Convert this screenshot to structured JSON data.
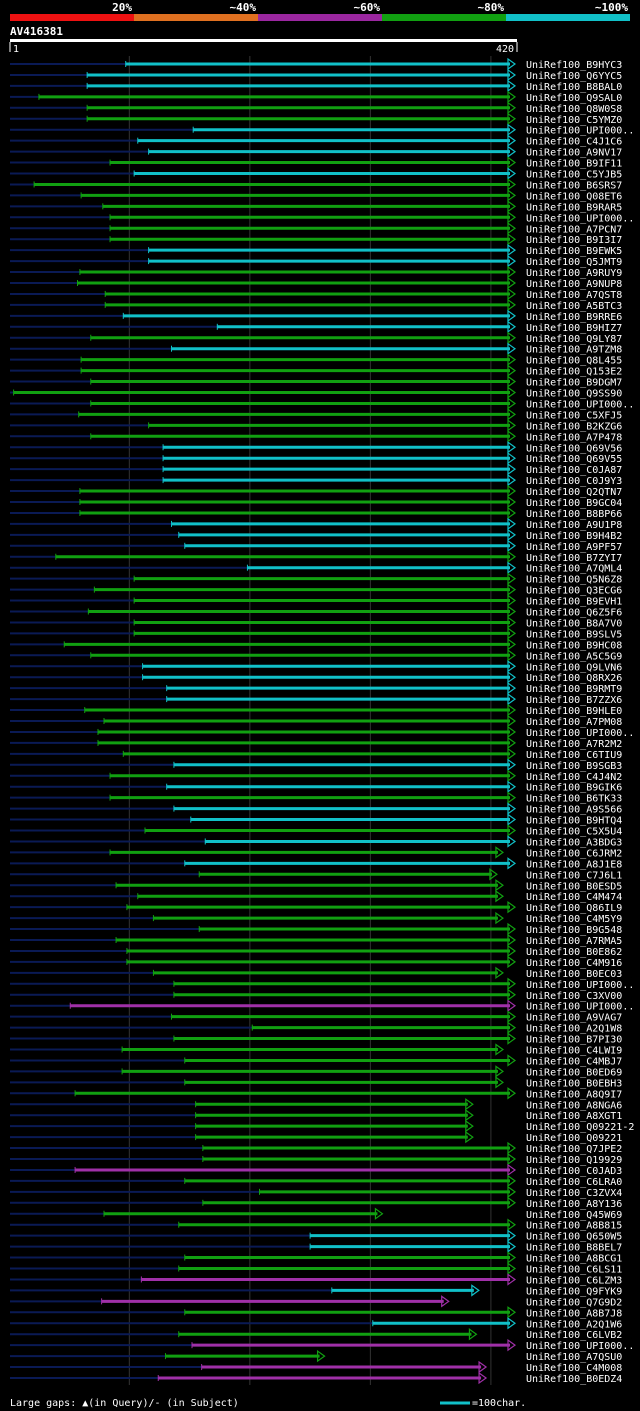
{
  "chart_data": {
    "type": "alignment-overview",
    "query": "AV416381",
    "query_start": 1,
    "query_end": 420,
    "identity_legend": [
      {
        "label": "20%",
        "color": "#ee1111"
      },
      {
        "label": "~40%",
        "color": "#e07020"
      },
      {
        "label": "~60%",
        "color": "#9b27a0"
      },
      {
        "label": "~80%",
        "color": "#11a011"
      },
      {
        "label": "~100%",
        "color": "#11c0c8"
      }
    ],
    "footer_left": "Large gaps: ▲(in Query)/- (in Subject)",
    "footer_right": "=100char.",
    "hits": [
      {
        "id": "UniRef100_B9HYC3",
        "start": 97,
        "end": 420,
        "tail_start": 1,
        "color": "cyan"
      },
      {
        "id": "UniRef100_Q6YYC5",
        "start": 65,
        "end": 420,
        "tail_start": 1,
        "color": "cyan"
      },
      {
        "id": "UniRef100_B8BAL0",
        "start": 65,
        "end": 420,
        "tail_start": 1,
        "color": "cyan"
      },
      {
        "id": "UniRef100_Q9SAL0",
        "start": 25,
        "end": 420,
        "tail_start": 1,
        "color": "green"
      },
      {
        "id": "UniRef100_Q8W0S8",
        "start": 65,
        "end": 420,
        "tail_start": 1,
        "color": "green"
      },
      {
        "id": "UniRef100_C5YMZ0",
        "start": 65,
        "end": 420,
        "tail_start": 1,
        "color": "green"
      },
      {
        "id": "UniRef100_UPI000..",
        "start": 153,
        "end": 420,
        "tail_start": 1,
        "color": "cyan"
      },
      {
        "id": "UniRef100_C4J1C6",
        "start": 107,
        "end": 420,
        "tail_start": 1,
        "color": "cyan"
      },
      {
        "id": "UniRef100_A9NV17",
        "start": 116,
        "end": 420,
        "tail_start": 1,
        "color": "cyan"
      },
      {
        "id": "UniRef100_B9IF11",
        "start": 84,
        "end": 420,
        "tail_start": 1,
        "color": "green"
      },
      {
        "id": "UniRef100_C5YJB5",
        "start": 104,
        "end": 420,
        "tail_start": 1,
        "color": "cyan"
      },
      {
        "id": "UniRef100_B6SRS7",
        "start": 21,
        "end": 420,
        "tail_start": 1,
        "color": "green"
      },
      {
        "id": "UniRef100_Q08ET6",
        "start": 60,
        "end": 420,
        "tail_start": 1,
        "color": "green"
      },
      {
        "id": "UniRef100_B9RAR5",
        "start": 78,
        "end": 420,
        "tail_start": 1,
        "color": "green"
      },
      {
        "id": "UniRef100_UPI000..",
        "start": 84,
        "end": 420,
        "tail_start": 1,
        "color": "green"
      },
      {
        "id": "UniRef100_A7PCN7",
        "start": 84,
        "end": 420,
        "tail_start": 1,
        "color": "green"
      },
      {
        "id": "UniRef100_B9I3I7",
        "start": 84,
        "end": 420,
        "tail_start": 1,
        "color": "green"
      },
      {
        "id": "UniRef100_B9EWK5",
        "start": 116,
        "end": 420,
        "tail_start": 1,
        "color": "cyan"
      },
      {
        "id": "UniRef100_Q5JMT9",
        "start": 116,
        "end": 420,
        "tail_start": 1,
        "color": "cyan"
      },
      {
        "id": "UniRef100_A9RUY9",
        "start": 59,
        "end": 420,
        "tail_start": 1,
        "color": "green"
      },
      {
        "id": "UniRef100_A9NUP8",
        "start": 57,
        "end": 420,
        "tail_start": 1,
        "color": "green"
      },
      {
        "id": "UniRef100_A7QST8",
        "start": 80,
        "end": 420,
        "tail_start": 1,
        "color": "green"
      },
      {
        "id": "UniRef100_A5BTC3",
        "start": 80,
        "end": 420,
        "tail_start": 1,
        "color": "green"
      },
      {
        "id": "UniRef100_B9RRE6",
        "start": 95,
        "end": 420,
        "tail_start": 1,
        "color": "cyan"
      },
      {
        "id": "UniRef100_B9HIZ7",
        "start": 173,
        "end": 420,
        "tail_start": 1,
        "color": "cyan"
      },
      {
        "id": "UniRef100_Q9LY87",
        "start": 68,
        "end": 420,
        "tail_start": 1,
        "color": "green"
      },
      {
        "id": "UniRef100_A9TZM8",
        "start": 135,
        "end": 420,
        "tail_start": 1,
        "color": "cyan"
      },
      {
        "id": "UniRef100_Q8L455",
        "start": 60,
        "end": 420,
        "tail_start": 1,
        "color": "green"
      },
      {
        "id": "UniRef100_Q153E2",
        "start": 60,
        "end": 420,
        "tail_start": 1,
        "color": "green"
      },
      {
        "id": "UniRef100_B9DGM7",
        "start": 68,
        "end": 420,
        "tail_start": 1,
        "color": "green"
      },
      {
        "id": "UniRef100_Q9SS90",
        "start": 4,
        "end": 420,
        "tail_start": 1,
        "color": "green"
      },
      {
        "id": "UniRef100_UPI000..",
        "start": 68,
        "end": 420,
        "tail_start": 1,
        "color": "green"
      },
      {
        "id": "UniRef100_C5XFJ5",
        "start": 58,
        "end": 420,
        "tail_start": 1,
        "color": "green"
      },
      {
        "id": "UniRef100_B2KZG6",
        "start": 116,
        "end": 420,
        "tail_start": 1,
        "color": "green"
      },
      {
        "id": "UniRef100_A7P478",
        "start": 68,
        "end": 420,
        "tail_start": 1,
        "color": "green"
      },
      {
        "id": "UniRef100_Q69V56",
        "start": 128,
        "end": 420,
        "tail_start": 1,
        "color": "cyan"
      },
      {
        "id": "UniRef100_Q69V55",
        "start": 128,
        "end": 420,
        "tail_start": 1,
        "color": "cyan"
      },
      {
        "id": "UniRef100_C0JA87",
        "start": 128,
        "end": 420,
        "tail_start": 1,
        "color": "cyan"
      },
      {
        "id": "UniRef100_C0J9Y3",
        "start": 128,
        "end": 420,
        "tail_start": 1,
        "color": "cyan"
      },
      {
        "id": "UniRef100_Q2QTN7",
        "start": 59,
        "end": 420,
        "tail_start": 1,
        "color": "green"
      },
      {
        "id": "UniRef100_B9GC04",
        "start": 59,
        "end": 420,
        "tail_start": 1,
        "color": "green"
      },
      {
        "id": "UniRef100_B8BP66",
        "start": 59,
        "end": 420,
        "tail_start": 1,
        "color": "green"
      },
      {
        "id": "UniRef100_A9U1P8",
        "start": 135,
        "end": 420,
        "tail_start": 1,
        "color": "cyan"
      },
      {
        "id": "UniRef100_B9H4B2",
        "start": 141,
        "end": 420,
        "tail_start": 1,
        "color": "cyan"
      },
      {
        "id": "UniRef100_A9PF57",
        "start": 146,
        "end": 420,
        "tail_start": 1,
        "color": "cyan"
      },
      {
        "id": "UniRef100_B7ZYI7",
        "start": 39,
        "end": 420,
        "tail_start": 1,
        "color": "green"
      },
      {
        "id": "UniRef100_A7QML4",
        "start": 198,
        "end": 420,
        "tail_start": 1,
        "color": "cyan"
      },
      {
        "id": "UniRef100_Q5N6Z8",
        "start": 104,
        "end": 420,
        "tail_start": 1,
        "color": "green"
      },
      {
        "id": "UniRef100_Q3ECG6",
        "start": 71,
        "end": 420,
        "tail_start": 1,
        "color": "green"
      },
      {
        "id": "UniRef100_B9EVH1",
        "start": 104,
        "end": 420,
        "tail_start": 1,
        "color": "green"
      },
      {
        "id": "UniRef100_Q6Z5F6",
        "start": 66,
        "end": 420,
        "tail_start": 1,
        "color": "green"
      },
      {
        "id": "UniRef100_B8A7V0",
        "start": 104,
        "end": 420,
        "tail_start": 1,
        "color": "green"
      },
      {
        "id": "UniRef100_B9SLV5",
        "start": 104,
        "end": 420,
        "tail_start": 1,
        "color": "green"
      },
      {
        "id": "UniRef100_B9HC08",
        "start": 46,
        "end": 420,
        "tail_start": 1,
        "color": "green"
      },
      {
        "id": "UniRef100_A5C5G9",
        "start": 68,
        "end": 420,
        "tail_start": 1,
        "color": "green"
      },
      {
        "id": "UniRef100_Q9LVN6",
        "start": 111,
        "end": 420,
        "tail_start": 1,
        "color": "cyan"
      },
      {
        "id": "UniRef100_Q8RX26",
        "start": 111,
        "end": 420,
        "tail_start": 1,
        "color": "cyan"
      },
      {
        "id": "UniRef100_B9RMT9",
        "start": 131,
        "end": 420,
        "tail_start": 1,
        "color": "cyan"
      },
      {
        "id": "UniRef100_B7ZZX6",
        "start": 131,
        "end": 420,
        "tail_start": 1,
        "color": "cyan"
      },
      {
        "id": "UniRef100_B9HLE0",
        "start": 63,
        "end": 420,
        "tail_start": 1,
        "color": "green"
      },
      {
        "id": "UniRef100_A7PM08",
        "start": 79,
        "end": 420,
        "tail_start": 1,
        "color": "green"
      },
      {
        "id": "UniRef100_UPI000..",
        "start": 74,
        "end": 420,
        "tail_start": 1,
        "color": "green"
      },
      {
        "id": "UniRef100_A7R2M2",
        "start": 74,
        "end": 420,
        "tail_start": 1,
        "color": "green"
      },
      {
        "id": "UniRef100_C6TIU9",
        "start": 95,
        "end": 420,
        "tail_start": 1,
        "color": "green"
      },
      {
        "id": "UniRef100_B9SGB3",
        "start": 137,
        "end": 420,
        "tail_start": 1,
        "color": "cyan"
      },
      {
        "id": "UniRef100_C4J4N2",
        "start": 84,
        "end": 420,
        "tail_start": 1,
        "color": "green"
      },
      {
        "id": "UniRef100_B9GIK6",
        "start": 131,
        "end": 420,
        "tail_start": 1,
        "color": "cyan"
      },
      {
        "id": "UniRef100_B6TK33",
        "start": 84,
        "end": 420,
        "tail_start": 1,
        "color": "green"
      },
      {
        "id": "UniRef100_A9S566",
        "start": 137,
        "end": 420,
        "tail_start": 1,
        "color": "cyan"
      },
      {
        "id": "UniRef100_B9HTQ4",
        "start": 151,
        "end": 420,
        "tail_start": 1,
        "color": "cyan"
      },
      {
        "id": "UniRef100_C5X5U4",
        "start": 113,
        "end": 420,
        "tail_start": 1,
        "color": "green"
      },
      {
        "id": "UniRef100_A3BDG3",
        "start": 163,
        "end": 420,
        "tail_start": 1,
        "color": "cyan"
      },
      {
        "id": "UniRef100_C6JRM2",
        "start": 84,
        "end": 410,
        "tail_start": 1,
        "color": "green"
      },
      {
        "id": "UniRef100_A8J1E8",
        "start": 146,
        "end": 420,
        "tail_start": 1,
        "color": "cyan"
      },
      {
        "id": "UniRef100_C7J6L1",
        "start": 158,
        "end": 405,
        "tail_start": 1,
        "color": "green"
      },
      {
        "id": "UniRef100_B0ESD5",
        "start": 89,
        "end": 410,
        "tail_start": 1,
        "color": "green"
      },
      {
        "id": "UniRef100_C4M474",
        "start": 107,
        "end": 410,
        "tail_start": 1,
        "color": "green"
      },
      {
        "id": "UniRef100_Q86IL9",
        "start": 98,
        "end": 420,
        "tail_start": 1,
        "color": "green"
      },
      {
        "id": "UniRef100_C4M5Y9",
        "start": 120,
        "end": 410,
        "tail_start": 1,
        "color": "green"
      },
      {
        "id": "UniRef100_B9G548",
        "start": 158,
        "end": 420,
        "tail_start": 1,
        "color": "green"
      },
      {
        "id": "UniRef100_A7RMA5",
        "start": 89,
        "end": 420,
        "tail_start": 1,
        "color": "green"
      },
      {
        "id": "UniRef100_B0E862",
        "start": 98,
        "end": 420,
        "tail_start": 1,
        "color": "green"
      },
      {
        "id": "UniRef100_C4M916",
        "start": 98,
        "end": 420,
        "tail_start": 1,
        "color": "green"
      },
      {
        "id": "UniRef100_B0EC03",
        "start": 120,
        "end": 410,
        "tail_start": 1,
        "color": "green"
      },
      {
        "id": "UniRef100_UPI000..",
        "start": 137,
        "end": 420,
        "tail_start": 1,
        "color": "green"
      },
      {
        "id": "UniRef100_C3XV00",
        "start": 137,
        "end": 420,
        "tail_start": 1,
        "color": "green"
      },
      {
        "id": "UniRef100_UPI000..",
        "start": 51,
        "end": 420,
        "tail_start": 1,
        "color": "magenta"
      },
      {
        "id": "UniRef100_A9VAG7",
        "start": 135,
        "end": 420,
        "tail_start": 1,
        "color": "green"
      },
      {
        "id": "UniRef100_A2Q1W8",
        "start": 202,
        "end": 420,
        "tail_start": 1,
        "color": "green"
      },
      {
        "id": "UniRef100_B7PI30",
        "start": 137,
        "end": 420,
        "tail_start": 1,
        "color": "green"
      },
      {
        "id": "UniRef100_C4LWI9",
        "start": 94,
        "end": 410,
        "tail_start": 1,
        "color": "green"
      },
      {
        "id": "UniRef100_C4MBJ7",
        "start": 146,
        "end": 420,
        "tail_start": 1,
        "color": "green"
      },
      {
        "id": "UniRef100_B0ED69",
        "start": 94,
        "end": 410,
        "tail_start": 1,
        "color": "green"
      },
      {
        "id": "UniRef100_B0EBH3",
        "start": 146,
        "end": 410,
        "tail_start": 1,
        "color": "green"
      },
      {
        "id": "UniRef100_A8Q9I7",
        "start": 55,
        "end": 420,
        "tail_start": 1,
        "color": "green"
      },
      {
        "id": "UniRef100_A8NGA6",
        "start": 155,
        "end": 385,
        "tail_start": 1,
        "color": "green"
      },
      {
        "id": "UniRef100_A8XGT1",
        "start": 155,
        "end": 385,
        "tail_start": 1,
        "color": "green"
      },
      {
        "id": "UniRef100_Q09221-2",
        "start": 155,
        "end": 385,
        "tail_start": 1,
        "color": "green"
      },
      {
        "id": "UniRef100_Q09221",
        "start": 155,
        "end": 385,
        "tail_start": 1,
        "color": "green"
      },
      {
        "id": "UniRef100_Q7JPE2",
        "start": 161,
        "end": 420,
        "tail_start": 1,
        "color": "green"
      },
      {
        "id": "UniRef100_Q19929",
        "start": 161,
        "end": 420,
        "tail_start": 1,
        "color": "green"
      },
      {
        "id": "UniRef100_C0JAD3",
        "start": 55,
        "end": 420,
        "tail_start": 1,
        "color": "magenta"
      },
      {
        "id": "UniRef100_C6LRA0",
        "start": 146,
        "end": 420,
        "tail_start": 1,
        "color": "green"
      },
      {
        "id": "UniRef100_C3ZVX4",
        "start": 208,
        "end": 420,
        "tail_start": 1,
        "color": "green"
      },
      {
        "id": "UniRef100_A8Y136",
        "start": 161,
        "end": 420,
        "tail_start": 1,
        "color": "green"
      },
      {
        "id": "UniRef100_Q45W69",
        "start": 79,
        "end": 310,
        "tail_start": 1,
        "color": "green"
      },
      {
        "id": "UniRef100_A8B815",
        "start": 141,
        "end": 420,
        "tail_start": 1,
        "color": "green"
      },
      {
        "id": "UniRef100_Q650W5",
        "start": 250,
        "end": 420,
        "tail_start": 1,
        "color": "cyan"
      },
      {
        "id": "UniRef100_B8BEL7",
        "start": 250,
        "end": 420,
        "tail_start": 1,
        "color": "cyan"
      },
      {
        "id": "UniRef100_A8BCG1",
        "start": 146,
        "end": 420,
        "tail_start": 1,
        "color": "green"
      },
      {
        "id": "UniRef100_C6LS11",
        "start": 141,
        "end": 420,
        "tail_start": 1,
        "color": "green"
      },
      {
        "id": "UniRef100_C6LZM3",
        "start": 110,
        "end": 420,
        "tail_start": 1,
        "color": "magenta"
      },
      {
        "id": "UniRef100_Q9FYK9",
        "start": 268,
        "end": 390,
        "tail_start": 1,
        "color": "cyan"
      },
      {
        "id": "UniRef100_Q7G9D2",
        "start": 77,
        "end": 365,
        "tail_start": 1,
        "color": "magenta"
      },
      {
        "id": "UniRef100_A8B7J8",
        "start": 146,
        "end": 420,
        "tail_start": 1,
        "color": "green"
      },
      {
        "id": "UniRef100_A2Q1W6",
        "start": 302,
        "end": 420,
        "tail_start": 1,
        "color": "cyan"
      },
      {
        "id": "UniRef100_C6LVB2",
        "start": 141,
        "end": 388,
        "tail_start": 1,
        "color": "green"
      },
      {
        "id": "UniRef100_UPI000..",
        "start": 152,
        "end": 420,
        "tail_start": 1,
        "color": "magenta"
      },
      {
        "id": "UniRef100_A7QSU0",
        "start": 130,
        "end": 262,
        "tail_start": 1,
        "color": "green"
      },
      {
        "id": "UniRef100_C4M008",
        "start": 160,
        "end": 396,
        "tail_start": 1,
        "color": "magenta"
      },
      {
        "id": "UniRef100_B0EDZ4",
        "start": 124,
        "end": 396,
        "tail_start": 1,
        "color": "magenta"
      }
    ]
  }
}
